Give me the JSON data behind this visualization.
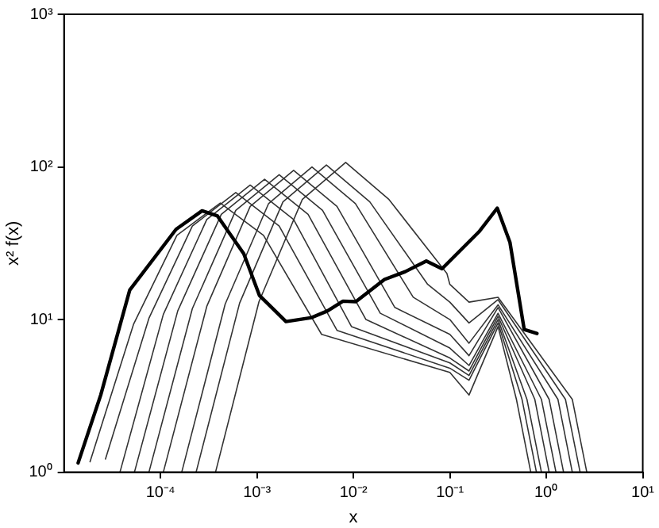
{
  "chart_data": {
    "type": "line",
    "xlabel": "x",
    "ylabel": "x² f(x)",
    "log": "xy",
    "grid": false,
    "legend": false,
    "marker": "none",
    "line_style": "solid",
    "xlim": [
      1e-05,
      10
    ],
    "ylim": [
      1,
      1000
    ],
    "xticks": [
      {
        "value": 0.0001,
        "label": "10⁻⁴"
      },
      {
        "value": 0.001,
        "label": "10⁻³"
      },
      {
        "value": 0.01,
        "label": "10⁻²"
      },
      {
        "value": 0.1,
        "label": "10⁻¹"
      },
      {
        "value": 1,
        "label": "10⁰"
      },
      {
        "value": 10,
        "label": "10¹"
      }
    ],
    "yticks": [
      {
        "value": 1,
        "label": "10⁰"
      },
      {
        "value": 10,
        "label": "10¹"
      },
      {
        "value": 100,
        "label": "10²"
      },
      {
        "value": 1000,
        "label": "10³"
      }
    ],
    "series": [
      {
        "color": "#000000",
        "x": [
          1.4e-05,
          2.4e-05,
          4.8e-05,
          0.000145,
          0.00027,
          0.00039,
          0.00073,
          0.00106,
          0.002,
          0.0037,
          0.0054,
          0.0078,
          0.0106,
          0.021,
          0.0345,
          0.057,
          0.083,
          0.2,
          0.31,
          0.42,
          0.59,
          0.8
        ],
        "values": [
          1.15,
          3.2,
          15.6,
          39,
          51.6,
          47.7,
          27,
          14.4,
          9.7,
          10.3,
          11.4,
          13.2,
          13.1,
          18.3,
          20.6,
          24.2,
          21.5,
          37.5,
          53.7,
          32,
          8.6,
          8.1
        ]
      },
      {
        "color": "#333333",
        "x": [
          1.86e-05,
          5.25e-05,
          0.000148,
          0.000417,
          0.00117,
          0.00468,
          0.1,
          0.158,
          0.316,
          0.49,
          0.69
        ],
        "values": [
          1.17,
          9.3,
          35.6,
          58,
          35.6,
          8,
          4.5,
          3.2,
          9,
          3,
          1
        ]
      },
      {
        "color": "#333333",
        "x": [
          2.69e-05,
          7.59e-05,
          0.000214,
          0.000603,
          0.0017,
          0.00676,
          0.1,
          0.158,
          0.316,
          0.56,
          0.79
        ],
        "values": [
          1.22,
          10.2,
          41,
          68,
          41,
          8.5,
          4.8,
          4,
          9.5,
          3,
          1
        ]
      },
      {
        "color": "#333333",
        "x": [
          3.8e-05,
          0.000107,
          0.000302,
          0.000851,
          0.0024,
          0.00955,
          0.1,
          0.158,
          0.316,
          0.63,
          0.89
        ],
        "values": [
          1,
          10.8,
          45.2,
          76,
          45.2,
          9,
          5.2,
          4.3,
          10,
          3,
          1
        ]
      },
      {
        "color": "#333333",
        "x": [
          5.37e-05,
          0.000151,
          0.000427,
          0.0012,
          0.00339,
          0.0135,
          0.1,
          0.158,
          0.316,
          0.76,
          1.07
        ],
        "values": [
          1,
          11.4,
          48.9,
          83,
          48.9,
          10,
          5.6,
          4.6,
          10.5,
          3,
          1
        ]
      },
      {
        "color": "#333333",
        "x": [
          7.59e-05,
          0.000214,
          0.000603,
          0.0017,
          0.00479,
          0.019,
          0.1,
          0.158,
          0.316,
          0.89,
          1.26
        ],
        "values": [
          1,
          11.8,
          51.9,
          89,
          51.9,
          11,
          6.5,
          5,
          11,
          3,
          1
        ]
      },
      {
        "color": "#333333",
        "x": [
          0.000107,
          0.000302,
          0.000851,
          0.0024,
          0.00676,
          0.0269,
          0.1,
          0.158,
          0.316,
          1.07,
          1.51
        ],
        "values": [
          1,
          12.2,
          55.1,
          95,
          55.1,
          12,
          8,
          5.8,
          12,
          3,
          1
        ]
      },
      {
        "color": "#333333",
        "x": [
          0.000166,
          0.000468,
          0.00132,
          0.00372,
          0.0105,
          0.0417,
          0.1,
          0.158,
          0.316,
          1.32,
          1.86
        ],
        "values": [
          1,
          12.6,
          57.5,
          100,
          57.5,
          14,
          10,
          7,
          12.5,
          3,
          1
        ]
      },
      {
        "color": "#333333",
        "x": [
          0.000234,
          0.000661,
          0.00186,
          0.00525,
          0.0148,
          0.0589,
          0.1,
          0.158,
          0.316,
          1.58,
          2.24
        ],
        "values": [
          1,
          12.8,
          59,
          103,
          59,
          17,
          13,
          9.5,
          13.5,
          3,
          1
        ]
      },
      {
        "color": "#333333",
        "x": [
          0.000372,
          0.00105,
          0.00295,
          0.00832,
          0.0234,
          0.0933,
          0.1,
          0.158,
          0.316,
          1.86,
          2.63
        ],
        "values": [
          1,
          13.1,
          61.1,
          107,
          61.1,
          20,
          17,
          13,
          14,
          3,
          1
        ]
      }
    ]
  }
}
